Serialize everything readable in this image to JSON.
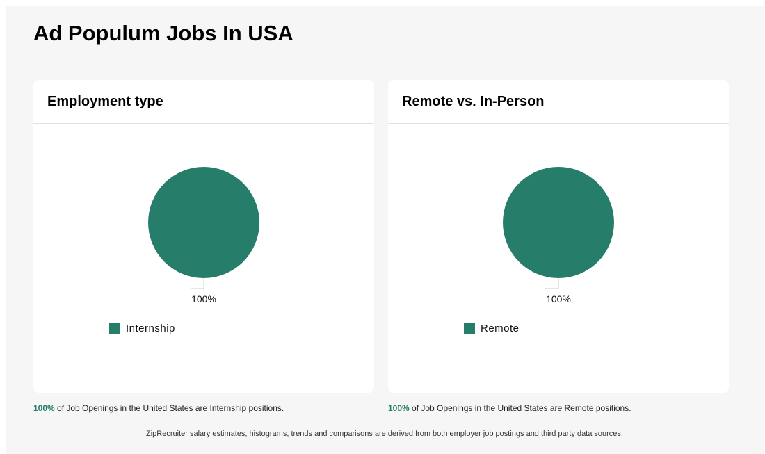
{
  "page": {
    "title": "Ad Populum Jobs In USA",
    "footer": "ZipRecruiter salary estimates, histograms, trends and comparisons are derived from both employer job postings and third party data sources."
  },
  "cards": [
    {
      "title": "Employment type",
      "caption_pct": "100%",
      "caption_text": " of Job Openings in the United States are Internship positions."
    },
    {
      "title": "Remote vs. In-Person",
      "caption_pct": "100%",
      "caption_text": " of Job Openings in the United States are Remote positions."
    }
  ],
  "colors": {
    "accent": "#267e6a",
    "leader_line": "#cccccc"
  },
  "chart_data": [
    {
      "type": "pie",
      "title": "Employment type",
      "slices": [
        {
          "label": "Internship",
          "value": 100,
          "data_label": "100%"
        }
      ],
      "legend_position": "bottom-left"
    },
    {
      "type": "pie",
      "title": "Remote vs. In-Person",
      "slices": [
        {
          "label": "Remote",
          "value": 100,
          "data_label": "100%"
        }
      ],
      "legend_position": "bottom-left"
    }
  ]
}
